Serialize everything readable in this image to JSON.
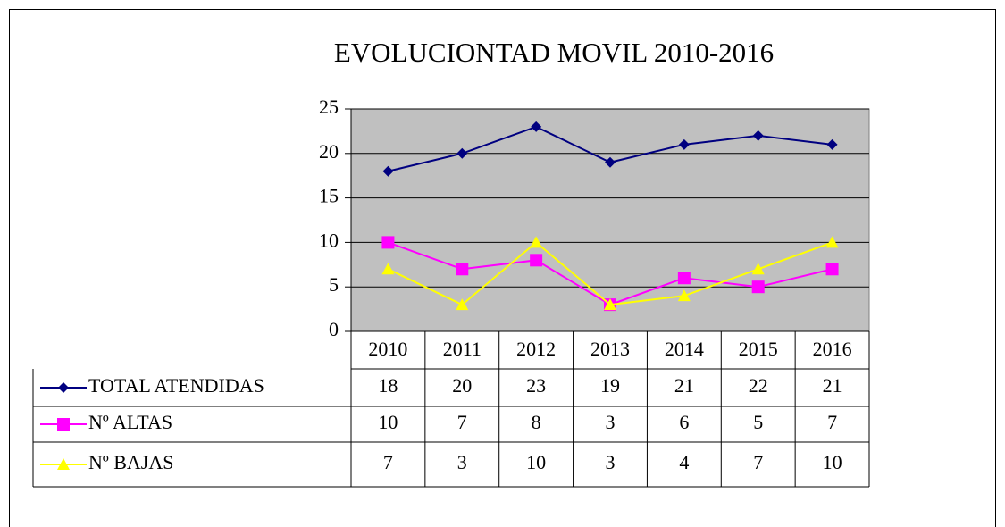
{
  "chart_data": {
    "type": "line",
    "title": "EVOLUCIONTAD MOVIL 2010-2016",
    "categories": [
      "2010",
      "2011",
      "2012",
      "2013",
      "2014",
      "2015",
      "2016"
    ],
    "series": [
      {
        "name": "TOTAL ATENDIDAS",
        "color": "#000080",
        "values": [
          18,
          20,
          23,
          19,
          21,
          22,
          21
        ]
      },
      {
        "name": "Nº ALTAS",
        "color": "#ff00ff",
        "values": [
          10,
          7,
          8,
          3,
          6,
          5,
          7
        ]
      },
      {
        "name": "Nº BAJAS",
        "color": "#ffff00",
        "values": [
          7,
          3,
          10,
          3,
          4,
          7,
          10
        ]
      }
    ],
    "ylim": [
      0,
      25
    ],
    "yticks": [
      0,
      5,
      10,
      15,
      20,
      25
    ],
    "grid": true
  }
}
